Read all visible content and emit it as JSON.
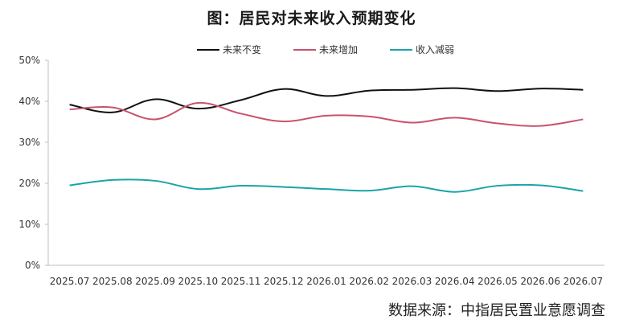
{
  "chart_data": {
    "type": "line",
    "title": "图：居民对未来收入预期变化",
    "categories": [
      "2025.07",
      "2025.08",
      "2025.09",
      "2025.10",
      "2025.11",
      "2025.12",
      "2026.01",
      "2026.02",
      "2026.03",
      "2026.04",
      "2026.05",
      "2026.06",
      "2026.07"
    ],
    "yticks": [
      "0%",
      "10%",
      "20%",
      "30%",
      "40%",
      "50%"
    ],
    "ylim": [
      0,
      50
    ],
    "legend_position": "top",
    "grid": false,
    "series": [
      {
        "name": "未来不变",
        "color": "#111111",
        "values": [
          39.2,
          37.3,
          40.5,
          38.2,
          40.3,
          43.0,
          41.3,
          42.6,
          42.8,
          43.2,
          42.5,
          43.1,
          42.8
        ]
      },
      {
        "name": "未来增加",
        "color": "#c9526e",
        "values": [
          38.0,
          38.5,
          35.6,
          39.6,
          37.0,
          35.1,
          36.5,
          36.3,
          34.8,
          36.0,
          34.6,
          34.0,
          35.6
        ]
      },
      {
        "name": "收入减弱",
        "color": "#1aa4a8",
        "values": [
          19.5,
          20.8,
          20.6,
          18.6,
          19.4,
          19.1,
          18.6,
          18.2,
          19.3,
          17.9,
          19.4,
          19.5,
          18.1
        ]
      }
    ]
  },
  "source_text": "数据来源：中指居民置业意愿调查"
}
